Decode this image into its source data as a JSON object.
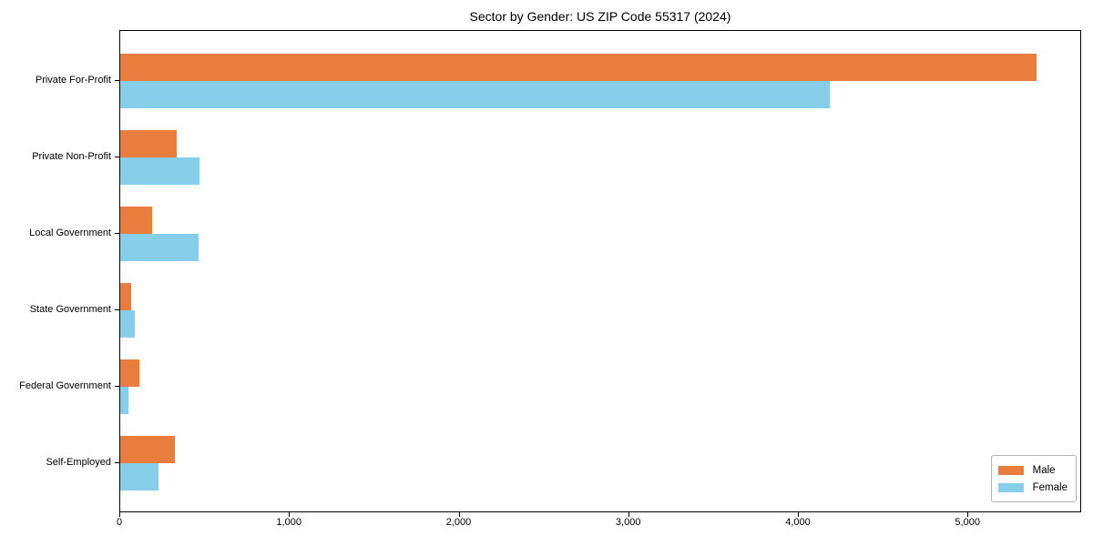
{
  "title": "Sector by Gender: US ZIP Code 55317 (2024)",
  "legend": {
    "position": "lower right",
    "items": [
      {
        "label": "Male",
        "color": "#e87d3e"
      },
      {
        "label": "Female",
        "color": "#87ceeb"
      }
    ]
  },
  "chart_data": {
    "type": "bar",
    "orientation": "horizontal",
    "title": "Sector by Gender: US ZIP Code 55317 (2024)",
    "xlabel": "",
    "ylabel": "",
    "categories": [
      "Private For-Profit",
      "Private Non-Profit",
      "Local Government",
      "State Government",
      "Federal Government",
      "Self-Employed"
    ],
    "series": [
      {
        "name": "Male",
        "color": "#e87d3e",
        "values": [
          5400,
          330,
          190,
          63,
          110,
          320
        ]
      },
      {
        "name": "Female",
        "color": "#87ceeb",
        "values": [
          4180,
          465,
          460,
          85,
          50,
          225
        ]
      }
    ],
    "xlim": [
      0,
      5670
    ],
    "xticks": [
      0,
      1000,
      2000,
      3000,
      4000,
      5000
    ],
    "xtick_labels": [
      "0",
      "1,000",
      "2,000",
      "3,000",
      "4,000",
      "5,000"
    ],
    "grid": false,
    "legend_position": "lower right"
  }
}
